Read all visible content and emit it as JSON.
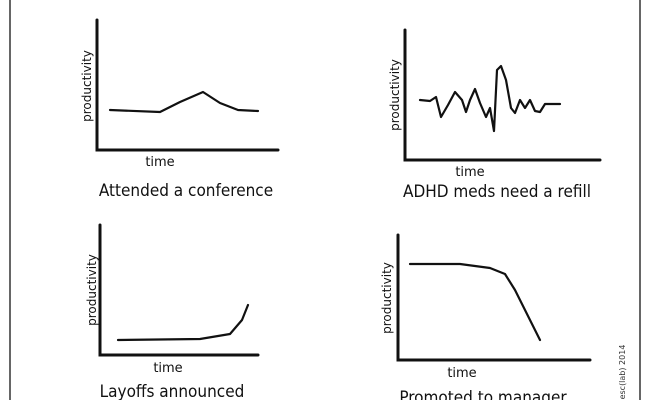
{
  "panels": [
    {
      "y_label": "productivity",
      "x_label": "time",
      "caption": "Attended a conference"
    },
    {
      "y_label": "productivity",
      "x_label": "time",
      "caption": "ADHD meds need a refill"
    },
    {
      "y_label": "productivity",
      "x_label": "time",
      "caption": "Layoffs announced"
    },
    {
      "y_label": "productivity",
      "x_label": "time",
      "caption": "Promoted to manager"
    }
  ],
  "signature": "esc(lab) 2014"
}
